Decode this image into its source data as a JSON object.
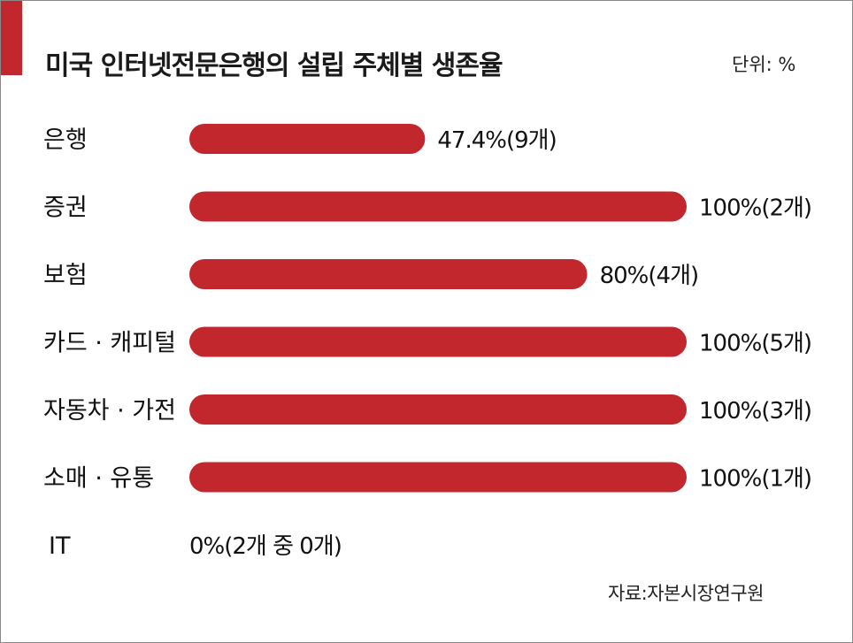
{
  "title": "미국 인터넷전문은행의 설립 주체별 생존율",
  "unit_label": "단위: %",
  "source": "자료:자본시장연구원",
  "colors": {
    "bar": "#c1272d",
    "accent": "#c1272d"
  },
  "chart_data": {
    "type": "bar",
    "orientation": "horizontal",
    "title": "미국 인터넷전문은행의 설립 주체별 생존율",
    "unit": "%",
    "xlim": [
      0,
      100
    ],
    "grid": false,
    "categories": [
      "은행",
      "증권",
      "보험",
      "카드 · 캐피털",
      "자동차 · 가전",
      "소매 · 유통",
      "IT"
    ],
    "values": [
      47.4,
      100,
      80,
      100,
      100,
      100,
      0
    ],
    "labels": [
      "47.4%(9개)",
      "100%(2개)",
      "80%(4개)",
      "100%(5개)",
      "100%(3개)",
      "100%(1개)",
      "0%(2개 중 0개)"
    ]
  }
}
